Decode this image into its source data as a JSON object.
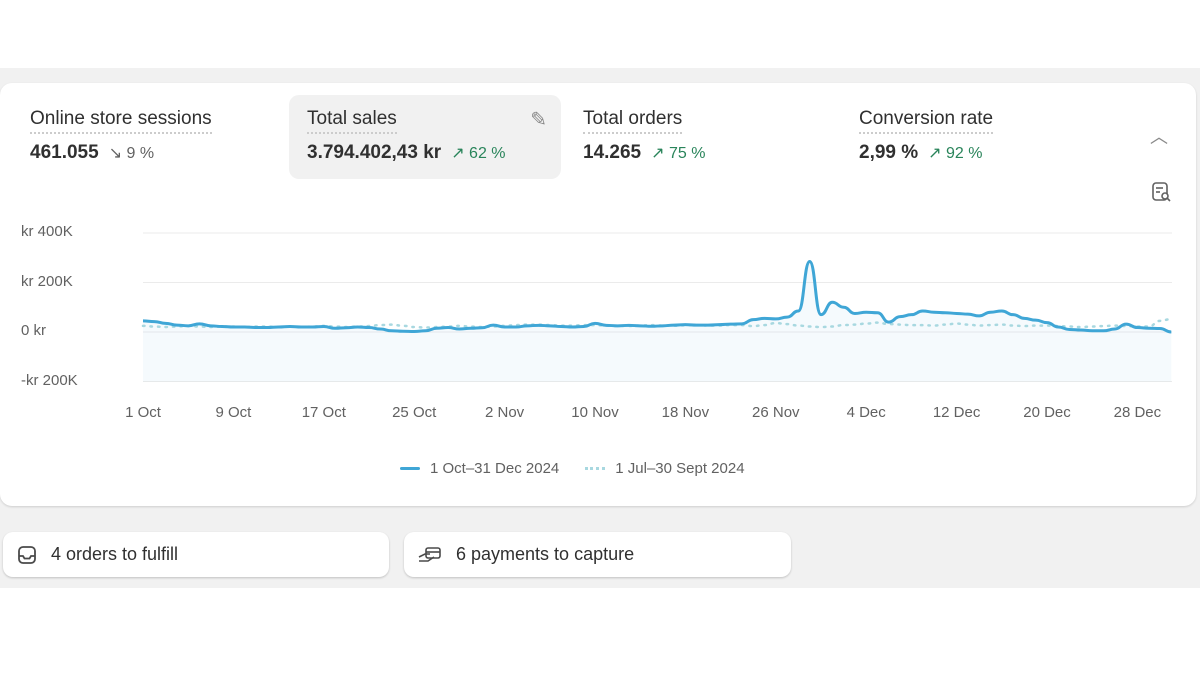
{
  "metrics": [
    {
      "title": "Online store sessions",
      "value": "461.055",
      "delta": "9 %",
      "direction": "down"
    },
    {
      "title": "Total sales",
      "value": "3.794.402,43 kr",
      "delta": "62 %",
      "direction": "up"
    },
    {
      "title": "Total orders",
      "value": "14.265",
      "delta": "75 %",
      "direction": "up"
    },
    {
      "title": "Conversion rate",
      "value": "2,99 %",
      "delta": "92 %",
      "direction": "up"
    }
  ],
  "icons": {
    "down": "↘",
    "up": "↗",
    "edit": "pencil-icon",
    "collapse": "chevron-up-icon",
    "report": "report-search-icon"
  },
  "colors": {
    "current": "#3fa6d6",
    "previous": "#a8d8e0",
    "up": "#29845a"
  },
  "chart_data": {
    "type": "line",
    "title": "Total sales",
    "y_unit": "kr (thousands)",
    "ylim": [
      -200,
      400
    ],
    "y_ticks": [
      {
        "v": 400,
        "label": "kr 400K"
      },
      {
        "v": 200,
        "label": "kr 200K"
      },
      {
        "v": 0,
        "label": "0 kr"
      },
      {
        "v": -200,
        "label": "-kr 200K"
      }
    ],
    "x_ticks": [
      {
        "d": 0,
        "label": "1 Oct"
      },
      {
        "d": 8,
        "label": "9 Oct"
      },
      {
        "d": 16,
        "label": "17 Oct"
      },
      {
        "d": 24,
        "label": "25 Oct"
      },
      {
        "d": 32,
        "label": "2 Nov"
      },
      {
        "d": 40,
        "label": "10 Nov"
      },
      {
        "d": 48,
        "label": "18 Nov"
      },
      {
        "d": 56,
        "label": "26 Nov"
      },
      {
        "d": 64,
        "label": "4 Dec"
      },
      {
        "d": 72,
        "label": "12 Dec"
      },
      {
        "d": 80,
        "label": "20 Dec"
      },
      {
        "d": 88,
        "label": "28 Dec"
      }
    ],
    "series": [
      {
        "name": "1 Oct–31 Dec 2024",
        "style": "solid",
        "values": [
          45,
          42,
          35,
          28,
          25,
          33,
          25,
          22,
          20,
          20,
          18,
          18,
          20,
          22,
          20,
          20,
          22,
          15,
          17,
          20,
          18,
          12,
          5,
          3,
          2,
          5,
          15,
          18,
          12,
          15,
          17,
          28,
          20,
          20,
          25,
          27,
          25,
          22,
          20,
          22,
          35,
          27,
          25,
          27,
          25,
          23,
          25,
          28,
          30,
          28,
          28,
          30,
          32,
          33,
          50,
          55,
          53,
          60,
          85,
          285,
          70,
          120,
          100,
          75,
          80,
          78,
          40,
          62,
          70,
          85,
          80,
          78,
          75,
          72,
          65,
          80,
          85,
          70,
          55,
          48,
          38,
          20,
          10,
          8,
          5,
          5,
          12,
          32,
          18,
          15,
          14,
          0
        ]
      },
      {
        "name": "1 Jul–30 Sept 2024",
        "style": "dotted",
        "values": [
          25,
          22,
          20,
          22,
          25,
          22,
          20,
          22,
          22,
          20,
          22,
          22,
          20,
          22,
          20,
          22,
          25,
          22,
          20,
          22,
          24,
          28,
          30,
          25,
          20,
          18,
          20,
          22,
          25,
          22,
          20,
          22,
          25,
          28,
          30,
          30,
          28,
          26,
          26,
          28,
          28,
          26,
          24,
          24,
          26,
          28,
          26,
          25,
          27,
          28,
          26,
          26,
          28,
          28,
          24,
          28,
          36,
          32,
          26,
          22,
          20,
          22,
          28,
          30,
          34,
          38,
          32,
          30,
          28,
          28,
          26,
          30,
          34,
          30,
          26,
          28,
          30,
          26,
          24,
          26,
          26,
          24,
          22,
          20,
          22,
          24,
          26,
          24,
          22,
          22,
          45,
          52
        ]
      }
    ]
  },
  "tasks": [
    {
      "label": "4 orders to fulfill",
      "icon": "inbox-icon"
    },
    {
      "label": "6 payments to capture",
      "icon": "hand-card-icon"
    }
  ]
}
